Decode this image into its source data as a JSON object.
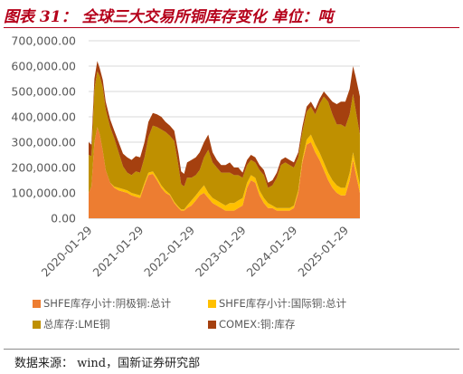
{
  "header": {
    "title": "图表 31：  全球三大交易所铜库存变化 单位：吨"
  },
  "footer": {
    "source": "数据来源：  wind，国新证券研究部"
  },
  "colors": {
    "title": "#b5001a",
    "series1": "#ed7d31",
    "series2": "#ffc000",
    "series3": "#bf9000",
    "series4": "#a5400f"
  },
  "chart_data": {
    "type": "area",
    "stacked": true,
    "title": "",
    "xlabel": "",
    "ylabel": "",
    "ylim": [
      0,
      700000
    ],
    "y_ticks": [
      "0.00",
      "100,000.00",
      "200,000.00",
      "300,000.00",
      "400,000.00",
      "500,000.00",
      "600,000.00",
      "700,000.00"
    ],
    "y_tick_values": [
      0,
      100000,
      200000,
      300000,
      400000,
      500000,
      600000,
      700000
    ],
    "x_ticks": [
      "2020-01-29",
      "2021-01-29",
      "2022-01-29",
      "2023-01-29",
      "2024-01-29",
      "2025-01-29"
    ],
    "xlim": [
      "2019-12-31",
      "2025-04-15"
    ],
    "grid": "horizontal",
    "legend_position": "bottom",
    "x": [
      "2019-12-31",
      "2020-01-20",
      "2020-02-10",
      "2020-03-02",
      "2020-03-20",
      "2020-04-10",
      "2020-05-01",
      "2020-06-01",
      "2020-07-01",
      "2020-08-01",
      "2020-09-01",
      "2020-10-01",
      "2020-11-01",
      "2020-12-01",
      "2021-01-01",
      "2021-02-01",
      "2021-03-01",
      "2021-04-01",
      "2021-05-01",
      "2021-06-01",
      "2021-07-01",
      "2021-08-01",
      "2021-09-01",
      "2021-10-01",
      "2021-10-20",
      "2021-11-10",
      "2021-12-01",
      "2022-01-01",
      "2022-02-01",
      "2022-03-01",
      "2022-04-01",
      "2022-05-01",
      "2022-06-01",
      "2022-07-01",
      "2022-08-01",
      "2022-09-01",
      "2022-10-01",
      "2022-11-01",
      "2022-12-01",
      "2023-01-01",
      "2023-02-01",
      "2023-03-01",
      "2023-04-01",
      "2023-05-01",
      "2023-06-01",
      "2023-07-01",
      "2023-08-01",
      "2023-09-01",
      "2023-10-01",
      "2023-11-01",
      "2023-12-01",
      "2024-01-01",
      "2024-02-01",
      "2024-03-01",
      "2024-04-01",
      "2024-05-01",
      "2024-06-01",
      "2024-07-01",
      "2024-08-01",
      "2024-09-01",
      "2024-10-01",
      "2024-11-01",
      "2024-12-01",
      "2025-01-01",
      "2025-02-01",
      "2025-02-25",
      "2025-03-15",
      "2025-04-15"
    ],
    "series": [
      {
        "name": "SHFE库存小计:阴极铜:总计",
        "values": [
          100000,
          125000,
          300000,
          360000,
          330000,
          265000,
          190000,
          140000,
          120000,
          110000,
          105000,
          100000,
          90000,
          85000,
          80000,
          130000,
          170000,
          175000,
          150000,
          120000,
          100000,
          90000,
          60000,
          40000,
          30000,
          30000,
          40000,
          50000,
          70000,
          90000,
          100000,
          80000,
          60000,
          50000,
          40000,
          30000,
          30000,
          30000,
          40000,
          50000,
          120000,
          150000,
          140000,
          90000,
          60000,
          40000,
          40000,
          30000,
          30000,
          30000,
          30000,
          40000,
          100000,
          220000,
          290000,
          300000,
          260000,
          230000,
          190000,
          150000,
          120000,
          100000,
          90000,
          90000,
          150000,
          230000,
          180000,
          100000
        ]
      },
      {
        "name": "SHFE库存小计:国际铜:总计",
        "values": [
          0,
          0,
          0,
          0,
          0,
          0,
          0,
          0,
          5000,
          10000,
          10000,
          10000,
          10000,
          10000,
          10000,
          10000,
          10000,
          10000,
          10000,
          10000,
          10000,
          5000,
          5000,
          5000,
          5000,
          5000,
          10000,
          20000,
          20000,
          20000,
          30000,
          20000,
          20000,
          20000,
          20000,
          20000,
          30000,
          30000,
          30000,
          30000,
          20000,
          20000,
          20000,
          20000,
          20000,
          20000,
          10000,
          10000,
          10000,
          10000,
          10000,
          10000,
          10000,
          10000,
          20000,
          30000,
          30000,
          30000,
          30000,
          30000,
          30000,
          30000,
          30000,
          30000,
          30000,
          30000,
          30000,
          30000
        ]
      },
      {
        "name": "总库存:LME铜",
        "values": [
          150000,
          120000,
          210000,
          220000,
          230000,
          250000,
          240000,
          220000,
          190000,
          140000,
          90000,
          70000,
          70000,
          90000,
          90000,
          100000,
          140000,
          180000,
          200000,
          220000,
          230000,
          230000,
          240000,
          160000,
          100000,
          90000,
          110000,
          90000,
          80000,
          80000,
          110000,
          170000,
          140000,
          130000,
          120000,
          130000,
          120000,
          110000,
          100000,
          80000,
          70000,
          60000,
          60000,
          80000,
          90000,
          60000,
          80000,
          120000,
          170000,
          180000,
          170000,
          150000,
          130000,
          110000,
          110000,
          110000,
          120000,
          190000,
          260000,
          280000,
          260000,
          240000,
          250000,
          240000,
          230000,
          230000,
          220000,
          200000
        ]
      },
      {
        "name": "COMEX:铜:库存",
        "values": [
          50000,
          45000,
          40000,
          40000,
          30000,
          30000,
          30000,
          30000,
          30000,
          40000,
          50000,
          60000,
          60000,
          60000,
          60000,
          60000,
          60000,
          50000,
          50000,
          50000,
          40000,
          40000,
          40000,
          50000,
          50000,
          50000,
          60000,
          70000,
          70000,
          70000,
          60000,
          60000,
          40000,
          30000,
          30000,
          30000,
          40000,
          30000,
          30000,
          20000,
          20000,
          20000,
          20000,
          20000,
          20000,
          20000,
          20000,
          20000,
          20000,
          20000,
          20000,
          20000,
          20000,
          20000,
          20000,
          20000,
          20000,
          20000,
          20000,
          20000,
          50000,
          80000,
          90000,
          100000,
          100000,
          110000,
          130000,
          150000
        ]
      }
    ]
  }
}
